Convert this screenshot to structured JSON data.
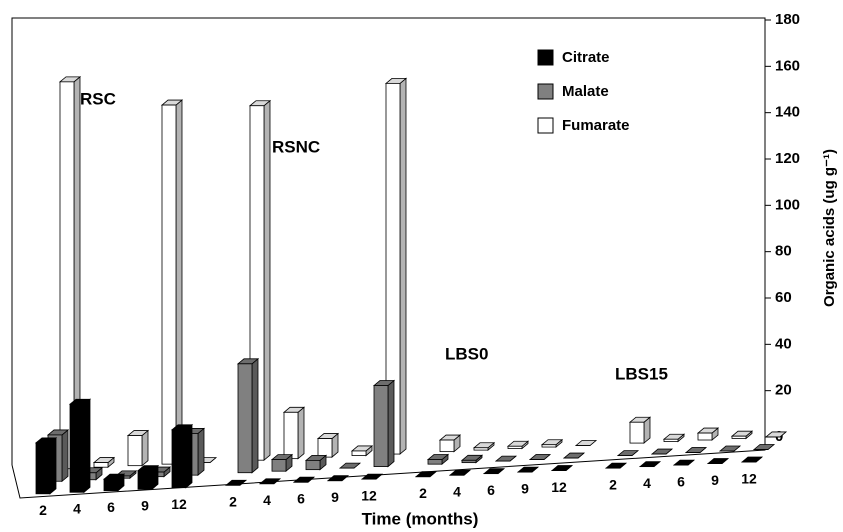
{
  "chart_data": {
    "type": "bar3d",
    "groups": [
      "RSC",
      "RSNC",
      "LBS0",
      "LBS15"
    ],
    "categories": [
      2,
      4,
      6,
      9,
      12,
      2,
      4,
      6,
      9,
      12,
      2,
      4,
      6,
      9,
      12,
      2,
      4,
      6,
      9,
      12
    ],
    "series": [
      {
        "name": "Citrate",
        "color": "#000000",
        "values": [
          22,
          38,
          5,
          8,
          25,
          0,
          0,
          0,
          0,
          0,
          0,
          0,
          0,
          0,
          0,
          0,
          0,
          0,
          0,
          0
        ]
      },
      {
        "name": "Malate",
        "color": "#808080",
        "values": [
          20,
          3,
          1,
          2,
          18,
          47,
          5,
          4,
          0,
          35,
          2,
          1,
          0,
          0,
          0,
          0,
          0,
          0,
          0,
          0
        ]
      },
      {
        "name": "Fumarate",
        "color": "#ffffff",
        "values": [
          167,
          2,
          13,
          155,
          0,
          153,
          20,
          8,
          2,
          160,
          5,
          1,
          1,
          1,
          0,
          9,
          1,
          3,
          1,
          0
        ]
      }
    ],
    "ylim": [
      0,
      180
    ],
    "yticks": [
      0,
      20,
      40,
      60,
      80,
      100,
      120,
      140,
      160,
      180
    ],
    "xlabel": "Time (months)",
    "ylabel": "Organic acids (ug g⁻¹)"
  }
}
